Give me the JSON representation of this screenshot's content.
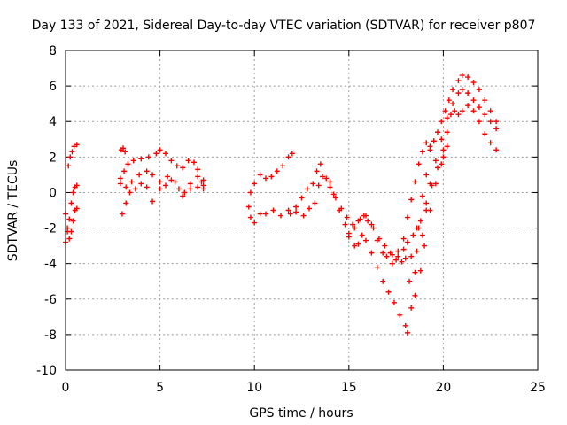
{
  "chart_data": {
    "type": "scatter",
    "title": "Day 133 of 2021, Sidereal Day-to-day VTEC variation (SDTVAR) for receiver p807",
    "xlabel": "GPS time / hours",
    "ylabel": "SDTVAR / TECUs",
    "xlim": [
      0,
      25
    ],
    "ylim": [
      -10,
      8
    ],
    "x_ticks": [
      "0",
      "5",
      "10",
      "15",
      "20",
      "25"
    ],
    "y_ticks": [
      "8",
      "6",
      "4",
      "2",
      "0",
      "-2",
      "-4",
      "-6",
      "-8",
      "-10"
    ],
    "x_tick_values": [
      0,
      5,
      10,
      15,
      20,
      25
    ],
    "y_tick_values": [
      8,
      6,
      4,
      2,
      0,
      -2,
      -4,
      -6,
      -8,
      -10
    ],
    "grid": true,
    "marker": "plus",
    "color": "#ff0000",
    "series": [
      {
        "segments": [
          [
            [
              0.0,
              -2.8
            ],
            [
              0.1,
              -2.2
            ],
            [
              0.2,
              -1.5
            ],
            [
              0.3,
              -0.6
            ],
            [
              0.4,
              0.0
            ],
            [
              0.5,
              0.3
            ],
            [
              0.6,
              0.4
            ]
          ],
          [
            [
              0.0,
              -1.2
            ],
            [
              0.1,
              -2.0
            ],
            [
              0.2,
              -2.6
            ],
            [
              0.3,
              -2.2
            ],
            [
              0.4,
              -1.6
            ],
            [
              0.5,
              -1.0
            ],
            [
              0.6,
              -0.9
            ]
          ],
          [
            [
              0.15,
              1.5
            ],
            [
              0.25,
              2.0
            ],
            [
              0.35,
              2.3
            ],
            [
              0.45,
              2.6
            ],
            [
              0.6,
              2.7
            ]
          ],
          [
            [
              2.95,
              2.4
            ],
            [
              3.05,
              2.5
            ],
            [
              3.15,
              2.3
            ]
          ],
          [
            [
              2.9,
              0.5
            ],
            [
              3.1,
              1.2
            ],
            [
              3.3,
              1.6
            ],
            [
              3.6,
              1.8
            ],
            [
              4.0,
              1.9
            ],
            [
              4.4,
              2.0
            ],
            [
              4.8,
              2.2
            ],
            [
              5.0,
              2.4
            ],
            [
              5.3,
              2.2
            ],
            [
              5.6,
              1.8
            ],
            [
              5.9,
              1.5
            ],
            [
              6.2,
              1.4
            ],
            [
              6.5,
              1.8
            ],
            [
              6.8,
              1.7
            ],
            [
              7.0,
              1.3
            ],
            [
              7.2,
              0.6
            ],
            [
              7.3,
              0.4
            ]
          ],
          [
            [
              3.0,
              -1.2
            ],
            [
              3.2,
              -0.6
            ],
            [
              3.4,
              0.0
            ],
            [
              3.7,
              0.2
            ],
            [
              4.0,
              0.5
            ],
            [
              4.3,
              1.2
            ],
            [
              4.6,
              1.0
            ],
            [
              5.0,
              0.6
            ],
            [
              5.3,
              0.4
            ],
            [
              5.6,
              0.7
            ],
            [
              6.0,
              0.2
            ],
            [
              6.3,
              0.0
            ],
            [
              6.6,
              0.5
            ],
            [
              7.0,
              0.3
            ],
            [
              7.3,
              0.2
            ]
          ],
          [
            [
              2.9,
              0.8
            ],
            [
              3.2,
              0.3
            ],
            [
              3.5,
              0.6
            ],
            [
              3.9,
              1.0
            ],
            [
              4.3,
              0.3
            ],
            [
              4.6,
              -0.5
            ],
            [
              5.0,
              0.2
            ],
            [
              5.4,
              0.9
            ],
            [
              5.8,
              0.6
            ],
            [
              6.2,
              -0.2
            ],
            [
              6.6,
              0.2
            ],
            [
              7.0,
              0.9
            ],
            [
              7.3,
              0.7
            ]
          ],
          [
            [
              9.7,
              -0.8
            ],
            [
              9.8,
              -1.4
            ],
            [
              10.0,
              -1.7
            ],
            [
              10.3,
              -1.2
            ],
            [
              10.6,
              -1.2
            ],
            [
              11.0,
              -1.0
            ],
            [
              11.4,
              -1.3
            ],
            [
              11.8,
              -1.0
            ],
            [
              12.2,
              -1.1
            ],
            [
              12.6,
              -1.3
            ],
            [
              12.9,
              -0.9
            ],
            [
              13.2,
              -0.6
            ],
            [
              13.4,
              0.4
            ],
            [
              13.6,
              0.9
            ],
            [
              14.0,
              0.6
            ],
            [
              14.2,
              -0.1
            ],
            [
              14.5,
              -1.0
            ],
            [
              14.8,
              -1.8
            ],
            [
              15.0,
              -2.3
            ],
            [
              15.3,
              -3.0
            ],
            [
              15.5,
              -2.9
            ],
            [
              15.7,
              -2.4
            ],
            [
              15.9,
              -2.7
            ],
            [
              16.2,
              -3.4
            ],
            [
              16.5,
              -4.2
            ],
            [
              16.8,
              -5.0
            ],
            [
              17.1,
              -5.6
            ],
            [
              17.4,
              -6.2
            ],
            [
              17.7,
              -6.9
            ],
            [
              18.0,
              -7.5
            ],
            [
              18.1,
              -7.9
            ],
            [
              18.3,
              -6.5
            ],
            [
              18.5,
              -4.5
            ],
            [
              18.7,
              -2.0
            ],
            [
              18.9,
              -0.2
            ],
            [
              19.1,
              1.0
            ],
            [
              19.3,
              2.4
            ],
            [
              19.5,
              2.9
            ],
            [
              19.7,
              3.4
            ],
            [
              19.9,
              4.0
            ],
            [
              20.1,
              4.6
            ],
            [
              20.3,
              5.2
            ],
            [
              20.5,
              5.8
            ],
            [
              20.8,
              6.3
            ],
            [
              21.0,
              6.6
            ],
            [
              21.3,
              6.5
            ],
            [
              21.6,
              6.2
            ],
            [
              21.9,
              5.8
            ],
            [
              22.2,
              5.2
            ],
            [
              22.5,
              4.6
            ],
            [
              22.8,
              4.0
            ]
          ],
          [
            [
              9.8,
              0.0
            ],
            [
              10.0,
              0.5
            ],
            [
              10.3,
              1.0
            ],
            [
              10.6,
              0.8
            ],
            [
              10.9,
              0.9
            ],
            [
              11.2,
              1.2
            ],
            [
              11.5,
              1.5
            ],
            [
              11.8,
              2.0
            ],
            [
              12.0,
              2.2
            ]
          ],
          [
            [
              11.9,
              -1.2
            ],
            [
              12.2,
              -0.8
            ],
            [
              12.5,
              -0.3
            ],
            [
              12.8,
              0.2
            ],
            [
              13.1,
              0.5
            ],
            [
              13.3,
              1.2
            ],
            [
              13.5,
              1.6
            ],
            [
              13.8,
              0.8
            ],
            [
              14.0,
              0.3
            ],
            [
              14.3,
              -0.3
            ],
            [
              14.6,
              -0.9
            ],
            [
              14.9,
              -1.4
            ],
            [
              15.2,
              -1.8
            ],
            [
              15.5,
              -1.6
            ],
            [
              15.8,
              -1.3
            ],
            [
              16.0,
              -1.6
            ],
            [
              16.3,
              -2.0
            ],
            [
              16.6,
              -2.6
            ],
            [
              16.9,
              -3.0
            ],
            [
              17.2,
              -3.4
            ],
            [
              17.5,
              -3.8
            ],
            [
              17.8,
              -3.9
            ],
            [
              18.0,
              -3.7
            ],
            [
              18.3,
              -3.6
            ],
            [
              18.6,
              -3.3
            ],
            [
              18.9,
              -2.4
            ],
            [
              19.1,
              -1.0
            ],
            [
              19.3,
              0.5
            ],
            [
              19.6,
              1.8
            ],
            [
              19.9,
              3.0
            ],
            [
              20.2,
              4.2
            ],
            [
              20.5,
              5.0
            ],
            [
              20.8,
              5.6
            ],
            [
              21.0,
              5.8
            ],
            [
              21.3,
              5.6
            ],
            [
              21.6,
              5.2
            ],
            [
              21.9,
              4.8
            ],
            [
              22.2,
              4.4
            ],
            [
              22.5,
              4.0
            ],
            [
              22.8,
              3.6
            ]
          ],
          [
            [
              15.0,
              -2.5
            ],
            [
              15.3,
              -2.0
            ],
            [
              15.6,
              -1.5
            ],
            [
              15.9,
              -1.3
            ],
            [
              16.2,
              -1.8
            ],
            [
              16.5,
              -2.7
            ],
            [
              16.8,
              -3.4
            ],
            [
              17.0,
              -3.6
            ],
            [
              17.3,
              -4.0
            ],
            [
              17.6,
              -3.6
            ],
            [
              17.9,
              -3.2
            ],
            [
              18.1,
              -2.8
            ],
            [
              18.4,
              -2.4
            ],
            [
              18.6,
              -2.0
            ],
            [
              18.8,
              -1.6
            ],
            [
              19.1,
              -0.6
            ],
            [
              19.4,
              0.4
            ],
            [
              19.7,
              1.4
            ],
            [
              20.0,
              2.4
            ],
            [
              20.2,
              3.4
            ],
            [
              20.4,
              4.4
            ],
            [
              20.6,
              4.6
            ],
            [
              20.8,
              4.4
            ],
            [
              21.0,
              4.6
            ],
            [
              21.3,
              4.9
            ],
            [
              21.6,
              4.6
            ],
            [
              21.9,
              4.0
            ],
            [
              22.2,
              3.3
            ],
            [
              22.5,
              2.8
            ],
            [
              22.8,
              2.4
            ]
          ],
          [
            [
              18.2,
              -5.0
            ],
            [
              18.5,
              -5.8
            ],
            [
              18.8,
              -4.4
            ],
            [
              19.0,
              -3.0
            ],
            [
              19.3,
              -1.0
            ],
            [
              19.6,
              0.5
            ],
            [
              19.9,
              1.6
            ],
            [
              20.0,
              2.0
            ],
            [
              20.2,
              2.6
            ]
          ],
          [
            [
              17.3,
              -3.5
            ],
            [
              17.6,
              -3.3
            ],
            [
              17.9,
              -2.6
            ],
            [
              18.1,
              -1.4
            ],
            [
              18.3,
              -0.4
            ],
            [
              18.5,
              0.6
            ],
            [
              18.7,
              1.6
            ],
            [
              18.9,
              2.3
            ],
            [
              19.1,
              2.8
            ],
            [
              19.3,
              2.6
            ],
            [
              19.5,
              2.9
            ]
          ]
        ]
      }
    ]
  }
}
